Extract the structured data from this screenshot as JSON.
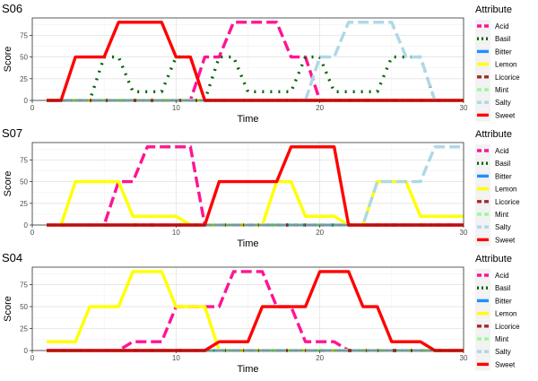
{
  "chart_data": [
    {
      "type": "line",
      "title": "S06",
      "xlabel": "Time",
      "ylabel": "Score",
      "xlim": [
        0,
        30
      ],
      "ylim": [
        0,
        95
      ],
      "x_ticks": [
        0,
        10,
        20,
        30
      ],
      "y_ticks": [
        0,
        25,
        50,
        75
      ],
      "grid": true,
      "legend_position": "right",
      "series": [
        {
          "name": "Acid",
          "values": [
            [
              1,
              0
            ],
            [
              11,
              0
            ],
            [
              12,
              50
            ],
            [
              13,
              50
            ],
            [
              14,
              90
            ],
            [
              17,
              90
            ],
            [
              18,
              50
            ],
            [
              19,
              50
            ],
            [
              20,
              0
            ],
            [
              30,
              0
            ]
          ]
        },
        {
          "name": "Basil",
          "values": [
            [
              1,
              0
            ],
            [
              4,
              0
            ],
            [
              5,
              50
            ],
            [
              6,
              50
            ],
            [
              7,
              10
            ],
            [
              9,
              10
            ],
            [
              10,
              50
            ],
            [
              11,
              50
            ],
            [
              12,
              0
            ],
            [
              13,
              50
            ],
            [
              14,
              50
            ],
            [
              15,
              10
            ],
            [
              18,
              10
            ],
            [
              19,
              50
            ],
            [
              20,
              50
            ],
            [
              21,
              10
            ],
            [
              24,
              10
            ],
            [
              25,
              50
            ],
            [
              27,
              50
            ],
            [
              28,
              0
            ],
            [
              30,
              0
            ]
          ]
        },
        {
          "name": "Bitter",
          "values": [
            [
              1,
              0
            ],
            [
              30,
              0
            ]
          ]
        },
        {
          "name": "Lemon",
          "values": [
            [
              1,
              0
            ],
            [
              30,
              0
            ]
          ]
        },
        {
          "name": "Licorice",
          "values": [
            [
              1,
              0
            ],
            [
              30,
              0
            ]
          ]
        },
        {
          "name": "Mint",
          "values": [
            [
              1,
              0
            ],
            [
              30,
              0
            ]
          ]
        },
        {
          "name": "Salty",
          "values": [
            [
              1,
              0
            ],
            [
              19,
              0
            ],
            [
              20,
              50
            ],
            [
              21,
              50
            ],
            [
              22,
              90
            ],
            [
              25,
              90
            ],
            [
              26,
              50
            ],
            [
              27,
              50
            ],
            [
              28,
              0
            ],
            [
              30,
              0
            ]
          ]
        },
        {
          "name": "Sweet",
          "values": [
            [
              1,
              0
            ],
            [
              2,
              0
            ],
            [
              3,
              50
            ],
            [
              5,
              50
            ],
            [
              6,
              90
            ],
            [
              9,
              90
            ],
            [
              10,
              50
            ],
            [
              11,
              50
            ],
            [
              12,
              0
            ],
            [
              30,
              0
            ]
          ]
        }
      ]
    },
    {
      "type": "line",
      "title": "S07",
      "xlabel": "Time",
      "ylabel": "Score",
      "xlim": [
        0,
        30
      ],
      "ylim": [
        0,
        95
      ],
      "x_ticks": [
        0,
        10,
        20,
        30
      ],
      "y_ticks": [
        0,
        25,
        50,
        75
      ],
      "grid": true,
      "legend_position": "right",
      "series": [
        {
          "name": "Acid",
          "values": [
            [
              1,
              0
            ],
            [
              5,
              0
            ],
            [
              6,
              50
            ],
            [
              7,
              50
            ],
            [
              8,
              90
            ],
            [
              11,
              90
            ],
            [
              12,
              0
            ],
            [
              30,
              0
            ]
          ]
        },
        {
          "name": "Basil",
          "values": [
            [
              1,
              0
            ],
            [
              30,
              0
            ]
          ]
        },
        {
          "name": "Bitter",
          "values": [
            [
              1,
              0
            ],
            [
              30,
              0
            ]
          ]
        },
        {
          "name": "Lemon",
          "values": [
            [
              1,
              0
            ],
            [
              2,
              0
            ],
            [
              3,
              50
            ],
            [
              6,
              50
            ],
            [
              7,
              10
            ],
            [
              10,
              10
            ],
            [
              11,
              0
            ],
            [
              16,
              0
            ],
            [
              17,
              50
            ],
            [
              18,
              50
            ],
            [
              19,
              10
            ],
            [
              21,
              10
            ],
            [
              22,
              0
            ],
            [
              23,
              0
            ],
            [
              24,
              50
            ],
            [
              26,
              50
            ],
            [
              27,
              10
            ],
            [
              30,
              10
            ]
          ]
        },
        {
          "name": "Licorice",
          "values": [
            [
              1,
              0
            ],
            [
              30,
              0
            ]
          ]
        },
        {
          "name": "Mint",
          "values": [
            [
              1,
              0
            ],
            [
              30,
              0
            ]
          ]
        },
        {
          "name": "Salty",
          "values": [
            [
              1,
              0
            ],
            [
              23,
              0
            ],
            [
              24,
              50
            ],
            [
              26,
              50
            ],
            [
              27,
              50
            ],
            [
              28,
              90
            ],
            [
              30,
              90
            ]
          ]
        },
        {
          "name": "Sweet",
          "values": [
            [
              1,
              0
            ],
            [
              12,
              0
            ],
            [
              13,
              50
            ],
            [
              16,
              50
            ],
            [
              17,
              50
            ],
            [
              18,
              90
            ],
            [
              21,
              90
            ],
            [
              22,
              0
            ],
            [
              30,
              0
            ]
          ]
        }
      ]
    },
    {
      "type": "line",
      "title": "S04",
      "xlabel": "Time",
      "ylabel": "Score",
      "xlim": [
        0,
        30
      ],
      "ylim": [
        0,
        95
      ],
      "x_ticks": [
        0,
        10,
        20,
        30
      ],
      "y_ticks": [
        0,
        25,
        50,
        75
      ],
      "grid": true,
      "legend_position": "right",
      "series": [
        {
          "name": "Acid",
          "values": [
            [
              1,
              0
            ],
            [
              6,
              0
            ],
            [
              7,
              10
            ],
            [
              9,
              10
            ],
            [
              10,
              50
            ],
            [
              11,
              50
            ],
            [
              12,
              50
            ],
            [
              13,
              50
            ],
            [
              14,
              90
            ],
            [
              16,
              90
            ],
            [
              17,
              50
            ],
            [
              18,
              50
            ],
            [
              19,
              10
            ],
            [
              21,
              10
            ],
            [
              22,
              0
            ],
            [
              30,
              0
            ]
          ]
        },
        {
          "name": "Basil",
          "values": [
            [
              1,
              0
            ],
            [
              30,
              0
            ]
          ]
        },
        {
          "name": "Bitter",
          "values": [
            [
              1,
              0
            ],
            [
              30,
              0
            ]
          ]
        },
        {
          "name": "Lemon",
          "values": [
            [
              1,
              10
            ],
            [
              3,
              10
            ],
            [
              4,
              50
            ],
            [
              6,
              50
            ],
            [
              7,
              90
            ],
            [
              9,
              90
            ],
            [
              10,
              50
            ],
            [
              12,
              50
            ],
            [
              13,
              0
            ],
            [
              30,
              0
            ]
          ]
        },
        {
          "name": "Licorice",
          "values": [
            [
              1,
              0
            ],
            [
              30,
              0
            ]
          ]
        },
        {
          "name": "Mint",
          "values": [
            [
              1,
              0
            ],
            [
              30,
              0
            ]
          ]
        },
        {
          "name": "Salty",
          "values": [
            [
              1,
              0
            ],
            [
              30,
              0
            ]
          ]
        },
        {
          "name": "Sweet",
          "values": [
            [
              1,
              0
            ],
            [
              12,
              0
            ],
            [
              13,
              10
            ],
            [
              15,
              10
            ],
            [
              16,
              50
            ],
            [
              18,
              50
            ],
            [
              19,
              50
            ],
            [
              20,
              90
            ],
            [
              22,
              90
            ],
            [
              23,
              50
            ],
            [
              24,
              50
            ],
            [
              25,
              10
            ],
            [
              27,
              10
            ],
            [
              28,
              0
            ],
            [
              30,
              0
            ]
          ]
        }
      ]
    }
  ],
  "legend": {
    "title": "Attribute",
    "entries": [
      "Acid",
      "Basil",
      "Bitter",
      "Lemon",
      "Licorice",
      "Mint",
      "Salty",
      "Sweet"
    ]
  },
  "series_styles": {
    "Acid": {
      "color": "#ff1493",
      "dash": "long"
    },
    "Basil": {
      "color": "#006400",
      "dash": "dotted"
    },
    "Bitter": {
      "color": "#1e90ff",
      "dash": "solid"
    },
    "Lemon": {
      "color": "#ffff00",
      "dash": "solid"
    },
    "Licorice": {
      "color": "#a52a2a",
      "dash": "twodash"
    },
    "Mint": {
      "color": "#98fb98",
      "dash": "dashed"
    },
    "Salty": {
      "color": "#add8e6",
      "dash": "long"
    },
    "Sweet": {
      "color": "#ff0000",
      "dash": "solid"
    }
  }
}
